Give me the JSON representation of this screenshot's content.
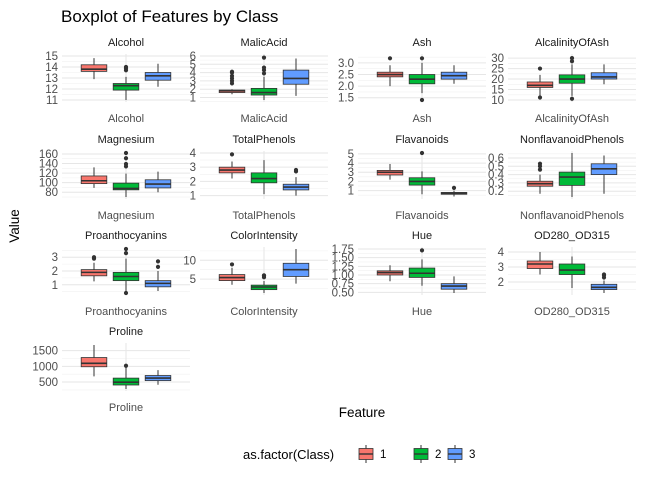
{
  "chart_data": {
    "type": "boxplot",
    "title": "Boxplot of Features by Class",
    "xlabel": "Feature",
    "ylabel": "Value",
    "legend": {
      "title": "as.factor(Class)",
      "position": "bottom",
      "entries": [
        {
          "label": "1",
          "color": "#F8766D"
        },
        {
          "label": "2",
          "color": "#00BA38"
        },
        {
          "label": "3",
          "color": "#619CFF"
        }
      ]
    },
    "facet_scales": "free_y",
    "grid": true,
    "panels": [
      {
        "feature": "Alcohol",
        "ylim": [
          11,
          15
        ],
        "ticks": [
          11,
          12,
          13,
          14,
          15
        ],
        "boxes": [
          {
            "class": "1",
            "min": 12.9,
            "q1": 13.6,
            "median": 13.8,
            "q3": 14.2,
            "max": 14.8,
            "outliers": []
          },
          {
            "class": "2",
            "min": 11.0,
            "q1": 11.9,
            "median": 12.3,
            "q3": 12.5,
            "max": 13.1,
            "outliers": [
              13.7,
              13.9,
              14.0
            ]
          },
          {
            "class": "3",
            "min": 12.2,
            "q1": 12.8,
            "median": 13.2,
            "q3": 13.5,
            "max": 14.3,
            "outliers": []
          }
        ]
      },
      {
        "feature": "MalicAcid",
        "ylim": [
          0.7,
          6
        ],
        "ticks": [
          1,
          2,
          3,
          4,
          5,
          6
        ],
        "boxes": [
          {
            "class": "1",
            "min": 1.4,
            "q1": 1.6,
            "median": 1.8,
            "q3": 1.9,
            "max": 2.0,
            "outliers": [
              2.7,
              3.0,
              3.3,
              3.6,
              4.0,
              4.1
            ]
          },
          {
            "class": "2",
            "min": 0.7,
            "q1": 1.3,
            "median": 1.6,
            "q3": 2.1,
            "max": 3.5,
            "outliers": [
              3.9,
              4.3,
              4.6,
              5.8
            ]
          },
          {
            "class": "3",
            "min": 1.2,
            "q1": 2.6,
            "median": 3.3,
            "q3": 4.3,
            "max": 5.7,
            "outliers": []
          }
        ]
      },
      {
        "feature": "Ash",
        "ylim": [
          1.4,
          3.3
        ],
        "ticks": [
          1.5,
          2.0,
          2.5,
          3.0
        ],
        "boxes": [
          {
            "class": "1",
            "min": 2.0,
            "q1": 2.4,
            "median": 2.5,
            "q3": 2.6,
            "max": 2.9,
            "outliers": [
              3.2
            ]
          },
          {
            "class": "2",
            "min": 1.7,
            "q1": 2.1,
            "median": 2.3,
            "q3": 2.5,
            "max": 3.0,
            "outliers": [
              1.4,
              3.2
            ]
          },
          {
            "class": "3",
            "min": 2.1,
            "q1": 2.3,
            "median": 2.45,
            "q3": 2.6,
            "max": 2.9,
            "outliers": []
          }
        ]
      },
      {
        "feature": "AlcalinityOfAsh",
        "ylim": [
          10,
          31
        ],
        "ticks": [
          10,
          15,
          20,
          25,
          30
        ],
        "boxes": [
          {
            "class": "1",
            "min": 12.0,
            "q1": 16.0,
            "median": 17.0,
            "q3": 18.6,
            "max": 22.0,
            "outliers": [
              25.0,
              11.2
            ]
          },
          {
            "class": "2",
            "min": 12.0,
            "q1": 18.0,
            "median": 20.0,
            "q3": 22.0,
            "max": 27.0,
            "outliers": [
              10.6,
              28.5,
              30.0
            ]
          },
          {
            "class": "3",
            "min": 17.5,
            "q1": 20.0,
            "median": 21.0,
            "q3": 23.0,
            "max": 27.0,
            "outliers": []
          }
        ]
      },
      {
        "feature": "Magnesium",
        "ylim": [
          70,
          162
        ],
        "ticks": [
          80,
          100,
          120,
          140,
          160
        ],
        "boxes": [
          {
            "class": "1",
            "min": 89,
            "q1": 98,
            "median": 104,
            "q3": 114,
            "max": 132,
            "outliers": []
          },
          {
            "class": "2",
            "min": 70,
            "q1": 85,
            "median": 88,
            "q3": 99,
            "max": 119,
            "outliers": [
              134,
              139,
              151,
              162
            ]
          },
          {
            "class": "3",
            "min": 80,
            "q1": 89,
            "median": 97,
            "q3": 106,
            "max": 123,
            "outliers": []
          }
        ]
      },
      {
        "feature": "TotalPhenols",
        "ylim": [
          0.9,
          4
        ],
        "ticks": [
          1,
          2,
          3,
          4
        ],
        "boxes": [
          {
            "class": "1",
            "min": 2.2,
            "q1": 2.6,
            "median": 2.8,
            "q3": 3.0,
            "max": 3.4,
            "outliers": [
              3.9
            ]
          },
          {
            "class": "2",
            "min": 1.1,
            "q1": 1.9,
            "median": 2.2,
            "q3": 2.6,
            "max": 3.5,
            "outliers": []
          },
          {
            "class": "3",
            "min": 1.0,
            "q1": 1.4,
            "median": 1.6,
            "q3": 1.8,
            "max": 2.3,
            "outliers": [
              2.7,
              2.8
            ]
          }
        ]
      },
      {
        "feature": "Flavanoids",
        "ylim": [
          0.3,
          5.1
        ],
        "ticks": [
          1,
          2,
          3,
          4,
          5
        ],
        "boxes": [
          {
            "class": "1",
            "min": 2.2,
            "q1": 2.7,
            "median": 3.0,
            "q3": 3.2,
            "max": 3.9,
            "outliers": []
          },
          {
            "class": "2",
            "min": 0.6,
            "q1": 1.6,
            "median": 2.0,
            "q3": 2.4,
            "max": 3.1,
            "outliers": [
              5.1
            ]
          },
          {
            "class": "3",
            "min": 0.35,
            "q1": 0.6,
            "median": 0.7,
            "q3": 0.8,
            "max": 1.0,
            "outliers": [
              1.3
            ]
          }
        ]
      },
      {
        "feature": "NonflavanoidPhenols",
        "ylim": [
          0.13,
          0.66
        ],
        "ticks": [
          0.2,
          0.3,
          0.4,
          0.5,
          0.6
        ],
        "boxes": [
          {
            "class": "1",
            "min": 0.17,
            "q1": 0.26,
            "median": 0.29,
            "q3": 0.32,
            "max": 0.4,
            "outliers": [
              0.46,
              0.5,
              0.53
            ]
          },
          {
            "class": "2",
            "min": 0.13,
            "q1": 0.27,
            "median": 0.37,
            "q3": 0.43,
            "max": 0.66,
            "outliers": []
          },
          {
            "class": "3",
            "min": 0.17,
            "q1": 0.4,
            "median": 0.47,
            "q3": 0.53,
            "max": 0.63,
            "outliers": []
          }
        ]
      },
      {
        "feature": "Proanthocyanins",
        "ylim": [
          0.4,
          3.6
        ],
        "ticks": [
          1,
          2,
          3
        ],
        "boxes": [
          {
            "class": "1",
            "min": 1.25,
            "q1": 1.65,
            "median": 1.9,
            "q3": 2.1,
            "max": 2.6,
            "outliers": [
              2.9,
              3.0
            ]
          },
          {
            "class": "2",
            "min": 0.5,
            "q1": 1.3,
            "median": 1.6,
            "q3": 1.9,
            "max": 2.9,
            "outliers": [
              3.3,
              3.6,
              0.4
            ]
          },
          {
            "class": "3",
            "min": 0.55,
            "q1": 0.85,
            "median": 1.1,
            "q3": 1.3,
            "max": 2.0,
            "outliers": [
              2.3,
              2.7
            ]
          }
        ]
      },
      {
        "feature": "ColorIntensity",
        "ylim": [
          1.3,
          13
        ],
        "ticks": [
          5,
          10
        ],
        "boxes": [
          {
            "class": "1",
            "min": 3.5,
            "q1": 4.6,
            "median": 5.4,
            "q3": 6.2,
            "max": 8.0,
            "outliers": [
              8.9
            ]
          },
          {
            "class": "2",
            "min": 1.3,
            "q1": 2.2,
            "median": 2.9,
            "q3": 3.4,
            "max": 4.5,
            "outliers": [
              5.5,
              5.9,
              6.0
            ]
          },
          {
            "class": "3",
            "min": 3.8,
            "q1": 5.7,
            "median": 7.5,
            "q3": 9.2,
            "max": 13.0,
            "outliers": []
          }
        ]
      },
      {
        "feature": "Hue",
        "ylim": [
          0.48,
          1.75
        ],
        "ticks": [
          0.5,
          0.75,
          1.0,
          1.25,
          1.5,
          1.75
        ],
        "boxes": [
          {
            "class": "1",
            "min": 0.82,
            "q1": 1.0,
            "median": 1.07,
            "q3": 1.12,
            "max": 1.28,
            "outliers": []
          },
          {
            "class": "2",
            "min": 0.69,
            "q1": 0.93,
            "median": 1.05,
            "q3": 1.2,
            "max": 1.45,
            "outliers": [
              1.71
            ]
          },
          {
            "class": "3",
            "min": 0.48,
            "q1": 0.59,
            "median": 0.68,
            "q3": 0.75,
            "max": 0.96,
            "outliers": []
          }
        ]
      },
      {
        "feature": "OD280_OD315",
        "ylim": [
          1.27,
          4.2
        ],
        "ticks": [
          2,
          3,
          4
        ],
        "boxes": [
          {
            "class": "1",
            "min": 2.5,
            "q1": 2.9,
            "median": 3.2,
            "q3": 3.4,
            "max": 4.0,
            "outliers": []
          },
          {
            "class": "2",
            "min": 1.6,
            "q1": 2.5,
            "median": 2.8,
            "q3": 3.2,
            "max": 3.7,
            "outliers": []
          },
          {
            "class": "3",
            "min": 1.27,
            "q1": 1.5,
            "median": 1.65,
            "q3": 1.85,
            "max": 2.1,
            "outliers": [
              2.3,
              2.45,
              2.5
            ]
          }
        ]
      },
      {
        "feature": "Proline",
        "ylim": [
          278,
          1680
        ],
        "ticks": [
          500,
          1000,
          1500
        ],
        "boxes": [
          {
            "class": "1",
            "min": 680,
            "q1": 987,
            "median": 1095,
            "q3": 1280,
            "max": 1680,
            "outliers": []
          },
          {
            "class": "2",
            "min": 278,
            "q1": 406,
            "median": 495,
            "q3": 625,
            "max": 985,
            "outliers": [
              1020
            ]
          },
          {
            "class": "3",
            "min": 415,
            "q1": 545,
            "median": 627,
            "q3": 708,
            "max": 880,
            "outliers": []
          }
        ]
      }
    ]
  }
}
